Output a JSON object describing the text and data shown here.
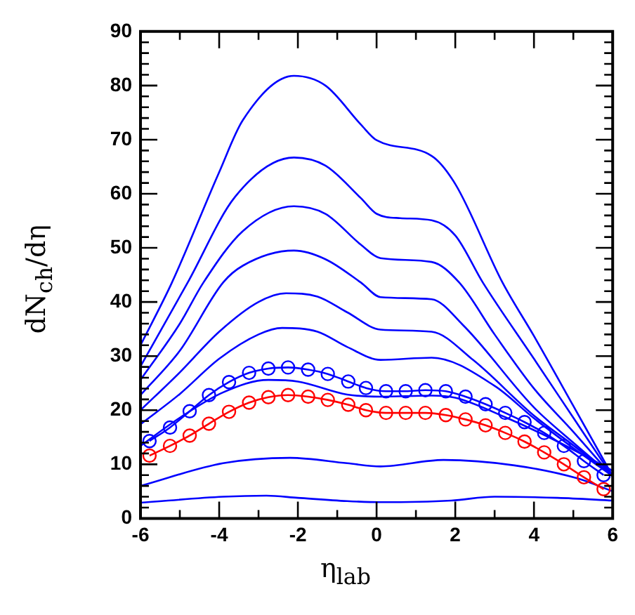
{
  "chart_data": {
    "type": "line",
    "xlabel": "η$_{lab}$",
    "ylabel": "dN$_{ch}$/dη",
    "xlim": [
      -6,
      6
    ],
    "xticks": [
      -6,
      {
        "value": -5,
        "label": null
      },
      -4,
      {
        "value": -3,
        "label": null
      },
      -2,
      {
        "value": -1,
        "label": null
      },
      0,
      {
        "value": 1,
        "label": null
      },
      2,
      {
        "value": 3,
        "label": null
      },
      4,
      {
        "value": 5,
        "label": null
      },
      6
    ],
    "ylim": [
      0,
      90
    ],
    "yticks": [
      0,
      {
        "value": 2,
        "label": null
      },
      {
        "value": 4,
        "label": null
      },
      {
        "value": 6,
        "label": null
      },
      {
        "value": 8,
        "label": null
      },
      10,
      {
        "value": 12,
        "label": null
      },
      {
        "value": 14,
        "label": null
      },
      {
        "value": 16,
        "label": null
      },
      {
        "value": 18,
        "label": null
      },
      20,
      {
        "value": 22,
        "label": null
      },
      {
        "value": 24,
        "label": null
      },
      {
        "value": 26,
        "label": null
      },
      {
        "value": 28,
        "label": null
      },
      30,
      {
        "value": 32,
        "label": null
      },
      {
        "value": 34,
        "label": null
      },
      {
        "value": 36,
        "label": null
      },
      {
        "value": 38,
        "label": null
      },
      40,
      {
        "value": 42,
        "label": null
      },
      {
        "value": 44,
        "label": null
      },
      {
        "value": 46,
        "label": null
      },
      {
        "value": 48,
        "label": null
      },
      50,
      {
        "value": 52,
        "label": null
      },
      {
        "value": 54,
        "label": null
      },
      {
        "value": 56,
        "label": null
      },
      {
        "value": 58,
        "label": null
      },
      60,
      {
        "value": 62,
        "label": null
      },
      {
        "value": 64,
        "label": null
      },
      {
        "value": 66,
        "label": null
      },
      {
        "value": 68,
        "label": null
      },
      70,
      {
        "value": 72,
        "label": null
      },
      {
        "value": 74,
        "label": null
      },
      {
        "value": 76,
        "label": null
      },
      {
        "value": 78,
        "label": null
      },
      80,
      {
        "value": 82,
        "label": null
      },
      {
        "value": 84,
        "label": null
      },
      {
        "value": 86,
        "label": null
      },
      {
        "value": 88,
        "label": null
      },
      90
    ],
    "grid": false,
    "legend": false,
    "marker": "none",
    "line_style": "solid",
    "series": [
      {
        "color": "#0000ff",
        "x": [
          -6,
          -5.2,
          -4,
          -3.4,
          -2.1,
          -1.3,
          -0.4,
          0,
          1.4,
          2,
          3.2,
          4,
          5,
          6
        ],
        "values": [
          32,
          43.6,
          64,
          73.6,
          81.8,
          80,
          72.8,
          69.9,
          67,
          61.8,
          43.6,
          33.7,
          20.8,
          7.8
        ]
      },
      {
        "color": "#0000ff",
        "x": [
          -6,
          -4.8,
          -3.6,
          -2.1,
          -1.3,
          -0.4,
          0,
          0.6,
          1.4,
          2,
          2.7,
          4,
          5,
          6
        ],
        "values": [
          28.1,
          43.6,
          59.4,
          66.7,
          65.2,
          59.2,
          56.3,
          55.5,
          55.1,
          52.3,
          43.6,
          29.5,
          18.6,
          7.7
        ]
      },
      {
        "color": "#0000ff",
        "x": [
          -6,
          -5,
          -4.4,
          -3.4,
          -2.1,
          -1.3,
          -0.4,
          0.1,
          1.4,
          2.1,
          3,
          4,
          5,
          6
        ],
        "values": [
          25.6,
          36,
          43.6,
          53.1,
          57.7,
          56.3,
          50.6,
          48.1,
          47.4,
          43.6,
          34,
          24,
          16,
          7.7
        ]
      },
      {
        "color": "#0000ff",
        "x": [
          -6,
          -5,
          -3.9,
          -3.4,
          -2.1,
          -1.3,
          -0.4,
          0.1,
          1.4,
          2.2,
          4,
          5,
          6
        ],
        "values": [
          22.8,
          31,
          43.6,
          46.7,
          49.5,
          47.9,
          43.6,
          40.9,
          40.5,
          35.7,
          20.5,
          14,
          7.8
        ]
      },
      {
        "color": "#0000ff",
        "x": [
          -6,
          -5,
          -4,
          -3,
          -2.3,
          -1.5,
          -0.75,
          0.1,
          1.4,
          2.45,
          4,
          5,
          6
        ],
        "values": [
          20,
          27,
          34.5,
          40,
          41.6,
          41,
          38.1,
          34.9,
          34.5,
          29.3,
          19,
          13.5,
          7.8
        ]
      },
      {
        "color": "#0000ff",
        "x": [
          -6,
          -5,
          -4,
          -3,
          -2.4,
          -1.5,
          -0.75,
          0.1,
          1.4,
          3,
          4,
          5,
          6
        ],
        "values": [
          17.4,
          23,
          29.5,
          34,
          35.2,
          34.5,
          31.7,
          29.3,
          29.7,
          24.5,
          18.5,
          13,
          7.8
        ]
      },
      {
        "color": "#0000ff",
        "marker": "circle",
        "x": [
          -5.77,
          -5.25,
          -4.75,
          -4.26,
          -3.75,
          -3.24,
          -2.75,
          -2.25,
          -1.74,
          -1.24,
          -0.72,
          -0.27,
          0.24,
          0.74,
          1.24,
          1.76,
          2.26,
          2.77,
          3.27,
          3.76,
          4.26,
          4.76,
          5.27,
          5.77
        ],
        "values": [
          14.3,
          16.8,
          19.8,
          22.8,
          25.2,
          26.9,
          27.7,
          27.9,
          27.5,
          26.7,
          25.3,
          24.1,
          23.5,
          23.5,
          23.7,
          23.5,
          22.5,
          21.1,
          19.5,
          17.8,
          15.8,
          13.4,
          10.6,
          8
        ]
      },
      {
        "color": "#0000ff",
        "x": [
          -6,
          -5,
          -3.9,
          -2.75,
          -2,
          -0.75,
          0.1,
          1.4,
          2,
          3.3,
          4.6,
          6
        ],
        "values": [
          13.4,
          18.6,
          23.3,
          25.6,
          25.3,
          22.9,
          22.5,
          22.7,
          22.3,
          18.6,
          14.2,
          8.8
        ]
      },
      {
        "color": "#ff0000",
        "marker": "circle",
        "x": [
          -5.77,
          -5.25,
          -4.75,
          -4.26,
          -3.75,
          -3.24,
          -2.75,
          -2.25,
          -1.74,
          -1.24,
          -0.72,
          -0.27,
          0.24,
          0.74,
          1.24,
          1.76,
          2.26,
          2.77,
          3.27,
          3.76,
          4.26,
          4.76,
          5.27,
          5.77
        ],
        "values": [
          11.6,
          13.4,
          15.3,
          17.5,
          19.7,
          21.4,
          22.4,
          22.8,
          22.5,
          21.9,
          21,
          20,
          19.5,
          19.5,
          19.5,
          19.1,
          18.3,
          17.2,
          15.8,
          14.2,
          12.2,
          10,
          7.6,
          5.4
        ]
      },
      {
        "color": "#0000ff",
        "x": [
          -6,
          -3.9,
          -2.2,
          -0.75,
          0.1,
          1.7,
          3.5,
          5.1,
          6
        ],
        "values": [
          6,
          10.2,
          11.2,
          10.2,
          9.6,
          10.8,
          9.8,
          7.4,
          5
        ]
      },
      {
        "color": "#0000ff",
        "x": [
          -6,
          -3.9,
          -2.8,
          -2,
          -0.75,
          0.1,
          1.9,
          3,
          4.6,
          6
        ],
        "values": [
          2.9,
          4,
          4.2,
          3.8,
          3.2,
          3,
          3.3,
          4,
          3.8,
          3.3
        ]
      }
    ]
  }
}
